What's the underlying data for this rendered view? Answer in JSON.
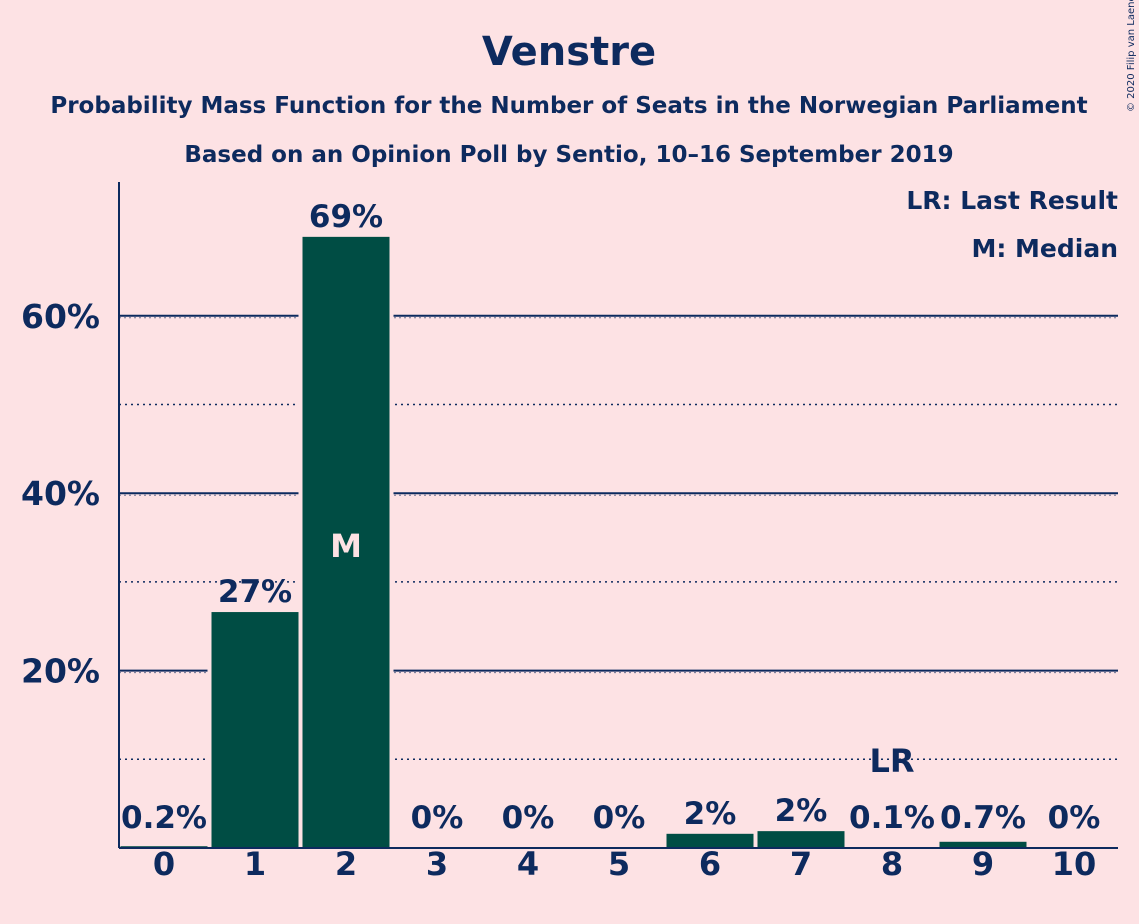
{
  "title": "Venstre",
  "subtitle_1": "Probability Mass Function for the Number of Seats in the Norwegian Parliament",
  "subtitle_2": "Based on an Opinion Poll by Sentio, 10–16 September 2019",
  "copyright": "© 2020 Filip van Laenen",
  "legend": {
    "last_result": "LR: Last Result",
    "median": "M: Median"
  },
  "colors": {
    "background": "#fde2e4",
    "bar": "#004d44",
    "text": "#0d2a5e"
  },
  "chart_data": {
    "type": "bar",
    "categories": [
      "0",
      "1",
      "2",
      "3",
      "4",
      "5",
      "6",
      "7",
      "8",
      "9",
      "10"
    ],
    "values": [
      0.2,
      26.6,
      68.9,
      0,
      0,
      0,
      1.6,
      1.9,
      0.1,
      0.7,
      0
    ],
    "value_labels": [
      "0.2%",
      "27%",
      "69%",
      "0%",
      "0%",
      "0%",
      "2%",
      "2%",
      "0.1%",
      "0.7%",
      "0%"
    ],
    "ylim": [
      0,
      75
    ],
    "yticks": [
      20,
      40,
      60
    ],
    "ytick_labels": [
      "20%",
      "40%",
      "60%"
    ],
    "minor_gridlines": [
      10,
      30,
      50
    ],
    "median_label": "M",
    "median_index": 2,
    "last_result_label": "LR",
    "last_result_index": 8,
    "grid": true,
    "legend_position": "top-right"
  }
}
